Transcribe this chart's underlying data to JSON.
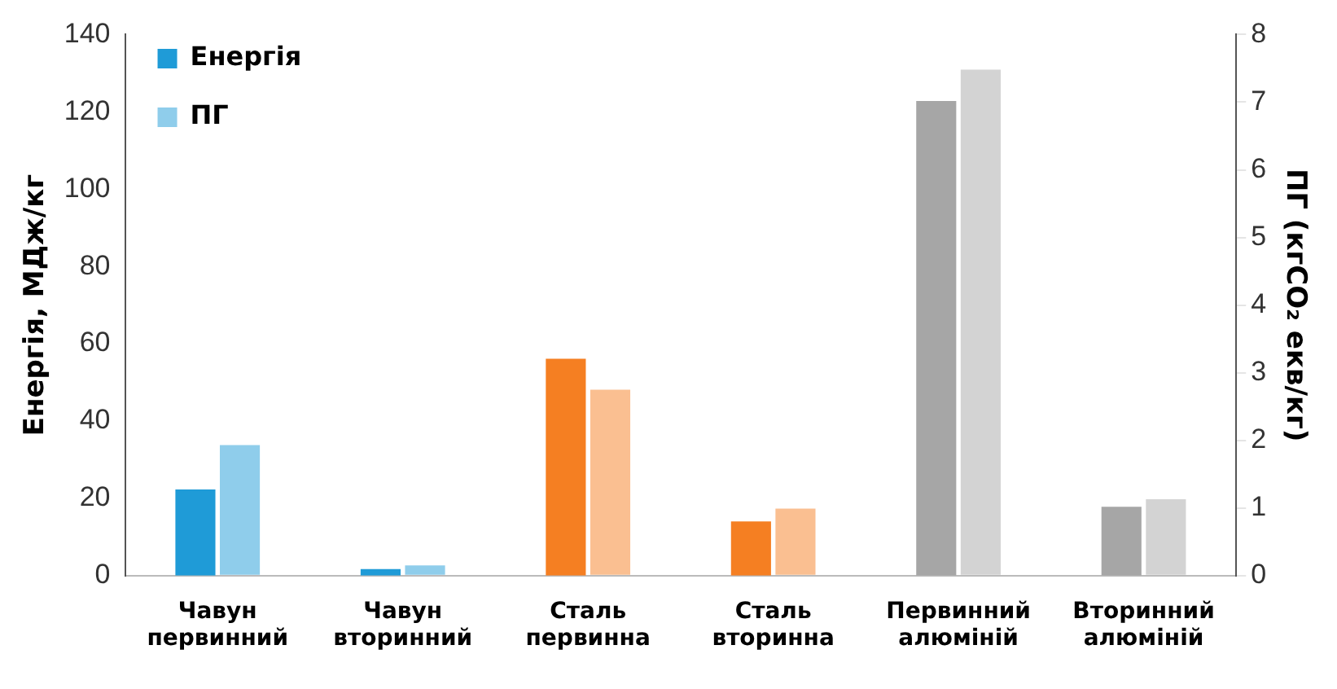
{
  "chart_data": {
    "type": "bar",
    "categories": [
      "Чавун первинний",
      "Чавун вторинний",
      "Сталь первинна",
      "Сталь вторинна",
      "Первинний алюміній",
      "Вторинний алюміній"
    ],
    "series": [
      {
        "name": "Енергія",
        "colors": [
          "#1f9bd7",
          "#1f9bd7",
          "#f57f22",
          "#f57f22",
          "#a6a6a6",
          "#a6a6a6"
        ],
        "values": [
          22.3,
          1.7,
          56.1,
          14.0,
          122.8,
          17.8
        ]
      },
      {
        "name": "ПГ",
        "colors": [
          "#8fcdeb",
          "#8fcdeb",
          "#fabf91",
          "#fabf91",
          "#d3d3d3",
          "#d3d3d3"
        ],
        "values": [
          1.93,
          0.15,
          2.75,
          0.99,
          7.48,
          1.13
        ],
        "axis": "y2"
      }
    ],
    "ylabel": "Енергія, МДж/кг",
    "y2label": "ПГ (кгCO₂ екв/кг)",
    "ylim": [
      0,
      140
    ],
    "yticks": [
      0,
      20,
      40,
      60,
      80,
      100,
      120,
      140
    ],
    "y2lim": [
      0,
      8
    ],
    "y2ticks": [
      0,
      1,
      2,
      3,
      4,
      5,
      6,
      7,
      8
    ],
    "grid": false,
    "legend": "top left"
  }
}
